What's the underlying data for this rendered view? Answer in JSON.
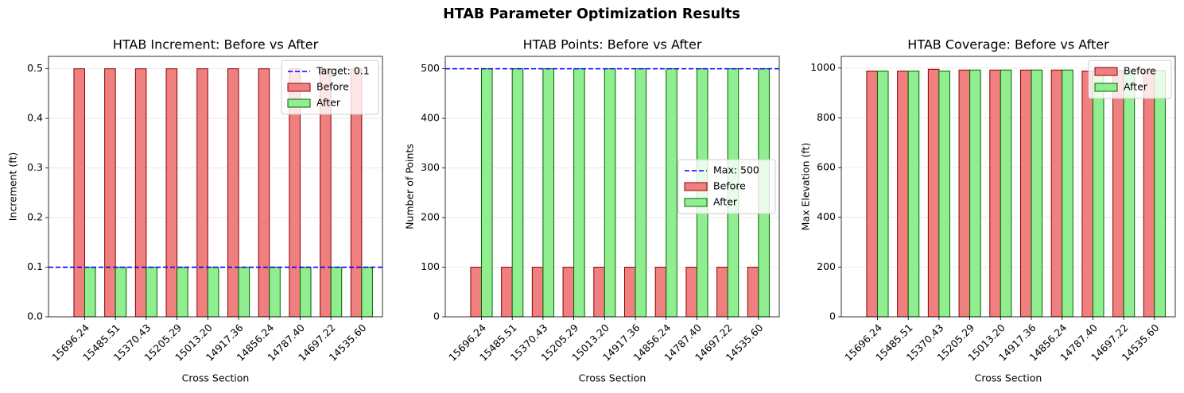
{
  "title": "HTAB Parameter Optimization Results",
  "chart_data": [
    {
      "type": "bar",
      "title": "HTAB Increment: Before vs After",
      "xlabel": "Cross Section",
      "ylabel": "Increment (ft)",
      "categories": [
        "15696.24",
        "15485.51",
        "15370.43",
        "15205.29",
        "15013.20",
        "14917.36",
        "14856.24",
        "14787.40",
        "14697.22",
        "14535.60"
      ],
      "series": [
        {
          "name": "Before",
          "color": "#f08080",
          "edgecolor": "#8b0000",
          "values": [
            0.5,
            0.5,
            0.5,
            0.5,
            0.5,
            0.5,
            0.5,
            0.5,
            0.5,
            0.5
          ]
        },
        {
          "name": "After",
          "color": "#90ee90",
          "edgecolor": "#006400",
          "values": [
            0.1,
            0.1,
            0.1,
            0.1,
            0.1,
            0.1,
            0.1,
            0.1,
            0.1,
            0.1
          ]
        }
      ],
      "reference_line": {
        "value": 0.1,
        "label": "Target: 0.1",
        "color": "#0000ff"
      },
      "ylim": [
        0,
        0.525
      ],
      "yticks": [
        {
          "value": 0,
          "label": "0.0"
        },
        0.1,
        0.2,
        0.3,
        0.4,
        0.5
      ],
      "grid": true,
      "legend": "upper right"
    },
    {
      "type": "bar",
      "title": "HTAB Points: Before vs After",
      "xlabel": "Cross Section",
      "ylabel": "Number of Points",
      "categories": [
        "15696.24",
        "15485.51",
        "15370.43",
        "15205.29",
        "15013.20",
        "14917.36",
        "14856.24",
        "14787.40",
        "14697.22",
        "14535.60"
      ],
      "series": [
        {
          "name": "Before",
          "color": "#f08080",
          "edgecolor": "#8b0000",
          "values": [
            100,
            100,
            100,
            100,
            100,
            100,
            100,
            100,
            100,
            100
          ]
        },
        {
          "name": "After",
          "color": "#90ee90",
          "edgecolor": "#006400",
          "values": [
            500,
            500,
            500,
            500,
            500,
            500,
            500,
            500,
            500,
            500
          ]
        }
      ],
      "reference_line": {
        "value": 500,
        "label": "Max: 500",
        "color": "#0000ff"
      },
      "ylim": [
        0,
        525
      ],
      "yticks": [
        0,
        100,
        200,
        300,
        400,
        500
      ],
      "grid": true,
      "legend": "center right"
    },
    {
      "type": "bar",
      "title": "HTAB Coverage: Before vs After",
      "xlabel": "Cross Section",
      "ylabel": "Max Elevation (ft)",
      "categories": [
        "15696.24",
        "15485.51",
        "15370.43",
        "15205.29",
        "15013.20",
        "14917.36",
        "14856.24",
        "14787.40",
        "14697.22",
        "14535.60"
      ],
      "series": [
        {
          "name": "Before",
          "color": "#f08080",
          "edgecolor": "#8b0000",
          "values": [
            988,
            988,
            995,
            992,
            992,
            992,
            992,
            988,
            990,
            990
          ]
        },
        {
          "name": "After",
          "color": "#90ee90",
          "edgecolor": "#006400",
          "values": [
            988,
            988,
            988,
            992,
            992,
            992,
            992,
            990,
            990,
            990
          ]
        }
      ],
      "ylim": [
        0,
        1047
      ],
      "yticks": [
        0,
        200,
        400,
        600,
        800,
        1000
      ],
      "grid": true,
      "legend": "upper right"
    }
  ]
}
